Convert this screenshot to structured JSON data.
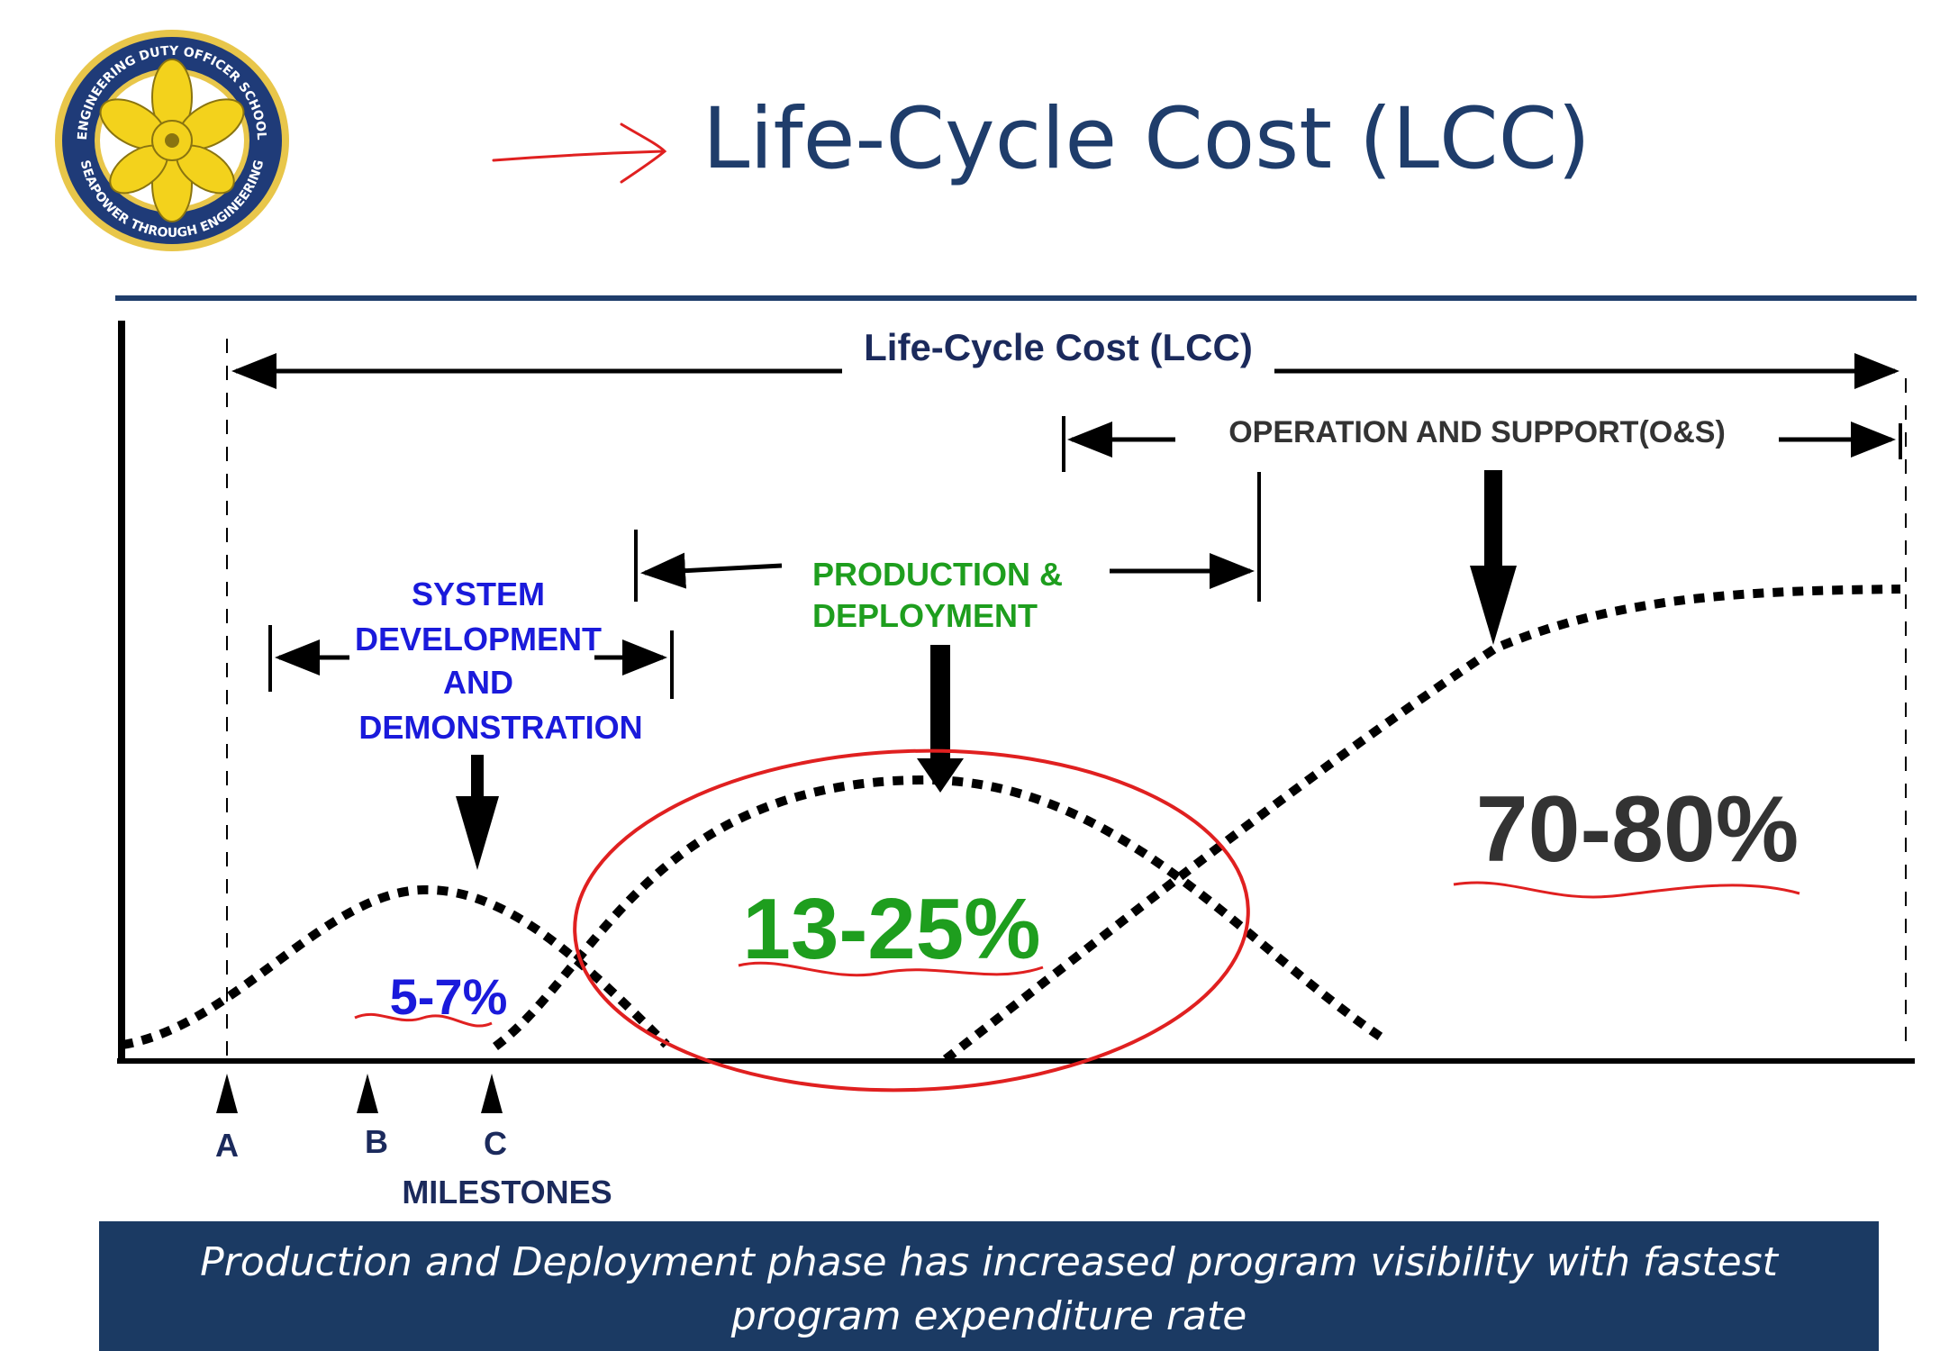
{
  "slide_title": "Life-Cycle Cost (LCC)",
  "logo": {
    "top_text": "ENGINEERING DUTY OFFICER SCHOOL",
    "bottom_text": "SEAPOWER THROUGH ENGINEERING"
  },
  "diagram": {
    "lcc_label": "Life-Cycle Cost (LCC)",
    "os_label": "OPERATION AND SUPPORT(O&S)",
    "pd_label": [
      "PRODUCTION &",
      "DEPLOYMENT"
    ],
    "sdd_label": [
      "SYSTEM",
      "DEVELOPMENT",
      "AND",
      "DEMONSTRATION"
    ],
    "pct_sdd": "5-7%",
    "pct_pd": "13-25%",
    "pct_os": "70-80%",
    "milestones": [
      "A",
      "B",
      "C"
    ],
    "milestones_label": "MILESTONES"
  },
  "colors": {
    "title": "#1f3d6b",
    "navy_text": "#1b2a5c",
    "sdd_blue": "#1a1adb",
    "pd_green": "#1e9e1e",
    "os_dark": "#333333",
    "annotation_red": "#e02020",
    "footer_bg": "#1b3a63"
  },
  "footer": {
    "line1": "Production and Deployment phase has increased program visibility with fastest",
    "line2": "program expenditure rate"
  }
}
